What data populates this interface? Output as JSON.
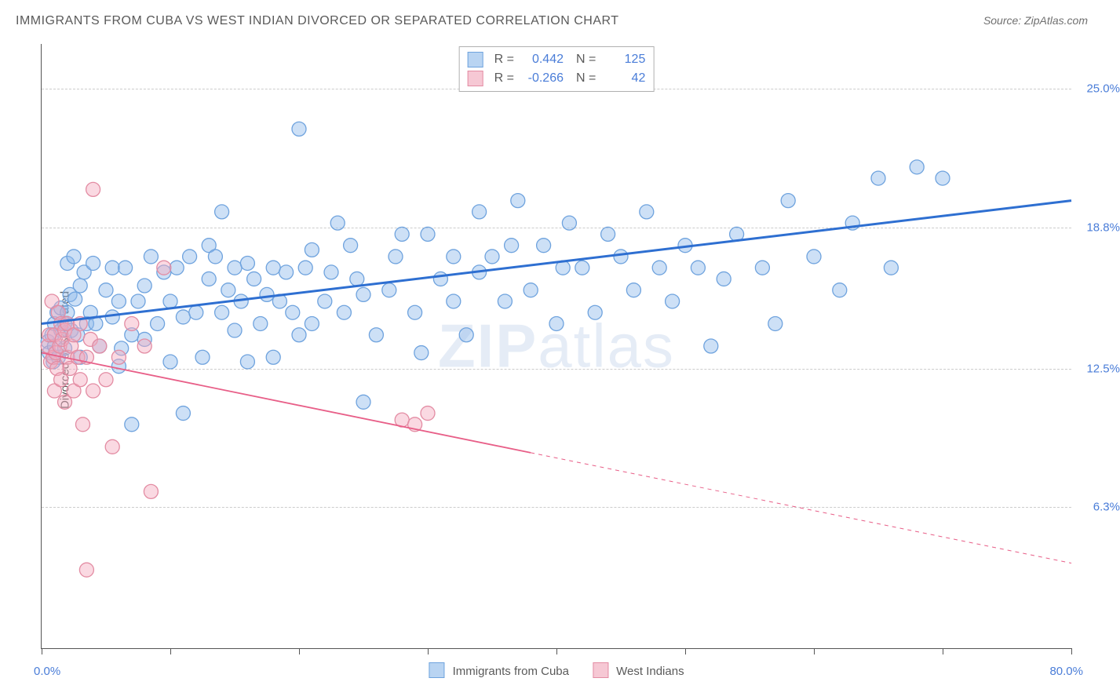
{
  "title": "IMMIGRANTS FROM CUBA VS WEST INDIAN DIVORCED OR SEPARATED CORRELATION CHART",
  "source": "Source: ZipAtlas.com",
  "ylabel": "Divorced or Separated",
  "watermark_bold": "ZIP",
  "watermark_rest": "atlas",
  "chart": {
    "type": "scatter",
    "background_color": "#ffffff",
    "grid_color": "#cccccc",
    "grid_dash": "4,4",
    "text_color": "#5a5a5a",
    "value_color": "#4a7dd8",
    "font_family": "Arial",
    "title_fontsize": 16,
    "label_fontsize": 15,
    "marker_radius": 9,
    "marker_stroke_width": 1.3,
    "trend_line_width_primary": 3,
    "trend_line_width_secondary": 1.8,
    "xlim": [
      0,
      80
    ],
    "ylim": [
      0,
      27
    ],
    "xtick_positions": [
      0,
      10,
      20,
      30,
      40,
      50,
      60,
      70,
      80
    ],
    "ytick_values": [
      6.3,
      12.5,
      18.8,
      25.0
    ],
    "ytick_labels": [
      "6.3%",
      "12.5%",
      "18.8%",
      "25.0%"
    ],
    "xlabel_min": "0.0%",
    "xlabel_max": "80.0%",
    "series": [
      {
        "name": "Immigrants from Cuba",
        "fill_color": "rgba(144, 186, 235, 0.45)",
        "stroke_color": "#6fa3de",
        "swatch_fill": "#b9d4f2",
        "swatch_border": "#6fa3de",
        "line_color": "#2e6fd1",
        "R": "0.442",
        "N": "125",
        "trend": {
          "x1": 0,
          "y1": 14.5,
          "x2": 80,
          "y2": 20.0,
          "dash_after_x": null
        },
        "points": [
          [
            0.5,
            13.7
          ],
          [
            0.6,
            13.2
          ],
          [
            0.8,
            14.0
          ],
          [
            0.9,
            12.8
          ],
          [
            1.0,
            13.5
          ],
          [
            1.0,
            14.5
          ],
          [
            1.2,
            15.0
          ],
          [
            1.3,
            13.0
          ],
          [
            1.5,
            14.2
          ],
          [
            1.5,
            15.2
          ],
          [
            1.8,
            14.5
          ],
          [
            1.8,
            13.4
          ],
          [
            2.0,
            17.2
          ],
          [
            2.0,
            15.0
          ],
          [
            2.2,
            15.8
          ],
          [
            2.3,
            14.2
          ],
          [
            2.5,
            17.5
          ],
          [
            2.6,
            15.6
          ],
          [
            2.8,
            14.0
          ],
          [
            3.0,
            16.2
          ],
          [
            3.0,
            13.0
          ],
          [
            3.3,
            16.8
          ],
          [
            3.5,
            14.5
          ],
          [
            3.8,
            15.0
          ],
          [
            4.0,
            17.2
          ],
          [
            4.2,
            14.5
          ],
          [
            4.5,
            13.5
          ],
          [
            5.0,
            16.0
          ],
          [
            5.5,
            14.8
          ],
          [
            5.5,
            17.0
          ],
          [
            6.0,
            15.5
          ],
          [
            6.0,
            12.6
          ],
          [
            6.2,
            13.4
          ],
          [
            6.5,
            17.0
          ],
          [
            7.0,
            14.0
          ],
          [
            7.0,
            10.0
          ],
          [
            7.5,
            15.5
          ],
          [
            8.0,
            16.2
          ],
          [
            8.0,
            13.8
          ],
          [
            8.5,
            17.5
          ],
          [
            9.0,
            14.5
          ],
          [
            9.5,
            16.8
          ],
          [
            10.0,
            15.5
          ],
          [
            10.0,
            12.8
          ],
          [
            10.5,
            17.0
          ],
          [
            11.0,
            14.8
          ],
          [
            11.0,
            10.5
          ],
          [
            11.5,
            17.5
          ],
          [
            12.0,
            15.0
          ],
          [
            12.5,
            13.0
          ],
          [
            13.0,
            16.5
          ],
          [
            13.0,
            18.0
          ],
          [
            13.5,
            17.5
          ],
          [
            14.0,
            15.0
          ],
          [
            14.0,
            19.5
          ],
          [
            14.5,
            16.0
          ],
          [
            15.0,
            14.2
          ],
          [
            15.0,
            17.0
          ],
          [
            15.5,
            15.5
          ],
          [
            16.0,
            12.8
          ],
          [
            16.0,
            17.2
          ],
          [
            16.5,
            16.5
          ],
          [
            17.0,
            14.5
          ],
          [
            17.5,
            15.8
          ],
          [
            18.0,
            17.0
          ],
          [
            18.0,
            13.0
          ],
          [
            18.5,
            15.5
          ],
          [
            19.0,
            16.8
          ],
          [
            19.5,
            15.0
          ],
          [
            20.0,
            14.0
          ],
          [
            20.0,
            23.2
          ],
          [
            20.5,
            17.0
          ],
          [
            21.0,
            14.5
          ],
          [
            21.0,
            17.8
          ],
          [
            22.0,
            15.5
          ],
          [
            22.5,
            16.8
          ],
          [
            23.0,
            19.0
          ],
          [
            23.5,
            15.0
          ],
          [
            24.0,
            18.0
          ],
          [
            24.5,
            16.5
          ],
          [
            25.0,
            15.8
          ],
          [
            25.0,
            11.0
          ],
          [
            26.0,
            14.0
          ],
          [
            27.0,
            16.0
          ],
          [
            27.5,
            17.5
          ],
          [
            28.0,
            18.5
          ],
          [
            29.0,
            15.0
          ],
          [
            29.5,
            13.2
          ],
          [
            30.0,
            18.5
          ],
          [
            31.0,
            16.5
          ],
          [
            32.0,
            15.5
          ],
          [
            32.0,
            17.5
          ],
          [
            33.0,
            14.0
          ],
          [
            34.0,
            16.8
          ],
          [
            34.0,
            19.5
          ],
          [
            35.0,
            17.5
          ],
          [
            36.0,
            15.5
          ],
          [
            36.5,
            18.0
          ],
          [
            37.0,
            20.0
          ],
          [
            38.0,
            16.0
          ],
          [
            39.0,
            18.0
          ],
          [
            40.0,
            14.5
          ],
          [
            40.5,
            17.0
          ],
          [
            41.0,
            19.0
          ],
          [
            42.0,
            17.0
          ],
          [
            43.0,
            15.0
          ],
          [
            44.0,
            18.5
          ],
          [
            45.0,
            17.5
          ],
          [
            46.0,
            16.0
          ],
          [
            47.0,
            19.5
          ],
          [
            48.0,
            17.0
          ],
          [
            49.0,
            15.5
          ],
          [
            50.0,
            18.0
          ],
          [
            51.0,
            17.0
          ],
          [
            52.0,
            13.5
          ],
          [
            53.0,
            16.5
          ],
          [
            54.0,
            18.5
          ],
          [
            56.0,
            17.0
          ],
          [
            57.0,
            14.5
          ],
          [
            58.0,
            20.0
          ],
          [
            60.0,
            17.5
          ],
          [
            62.0,
            16.0
          ],
          [
            63.0,
            19.0
          ],
          [
            65.0,
            21.0
          ],
          [
            66.0,
            17.0
          ],
          [
            68.0,
            21.5
          ],
          [
            70.0,
            21.0
          ]
        ]
      },
      {
        "name": "West Indians",
        "fill_color": "rgba(245, 170, 190, 0.45)",
        "stroke_color": "#e38ca3",
        "swatch_fill": "#f6c8d4",
        "swatch_border": "#e38ca3",
        "line_color": "#e85f88",
        "R": "-0.266",
        "N": "42",
        "trend": {
          "x1": 0,
          "y1": 13.2,
          "x2": 80,
          "y2": 3.8,
          "dash_after_x": 38
        },
        "points": [
          [
            0.5,
            13.5
          ],
          [
            0.6,
            14.0
          ],
          [
            0.7,
            12.8
          ],
          [
            0.8,
            15.5
          ],
          [
            0.9,
            13.0
          ],
          [
            1.0,
            14.0
          ],
          [
            1.0,
            11.5
          ],
          [
            1.1,
            13.2
          ],
          [
            1.2,
            12.5
          ],
          [
            1.3,
            15.0
          ],
          [
            1.4,
            13.5
          ],
          [
            1.5,
            12.0
          ],
          [
            1.5,
            14.5
          ],
          [
            1.6,
            13.8
          ],
          [
            1.8,
            11.0
          ],
          [
            1.8,
            14.2
          ],
          [
            2.0,
            13.0
          ],
          [
            2.0,
            14.5
          ],
          [
            2.2,
            12.5
          ],
          [
            2.3,
            13.5
          ],
          [
            2.5,
            14.0
          ],
          [
            2.5,
            11.5
          ],
          [
            2.8,
            13.0
          ],
          [
            3.0,
            12.0
          ],
          [
            3.0,
            14.5
          ],
          [
            3.2,
            10.0
          ],
          [
            3.5,
            13.0
          ],
          [
            3.8,
            13.8
          ],
          [
            4.0,
            11.5
          ],
          [
            4.0,
            20.5
          ],
          [
            4.5,
            13.5
          ],
          [
            5.0,
            12.0
          ],
          [
            5.5,
            9.0
          ],
          [
            6.0,
            13.0
          ],
          [
            7.0,
            14.5
          ],
          [
            8.0,
            13.5
          ],
          [
            8.5,
            7.0
          ],
          [
            9.5,
            17.0
          ],
          [
            3.5,
            3.5
          ],
          [
            28.0,
            10.2
          ],
          [
            29.0,
            10.0
          ],
          [
            30.0,
            10.5
          ]
        ]
      }
    ]
  },
  "legend_top": {
    "r_label": "R =",
    "n_label": "N ="
  },
  "legend_bottom": {
    "series1": "Immigrants from Cuba",
    "series2": "West Indians"
  }
}
